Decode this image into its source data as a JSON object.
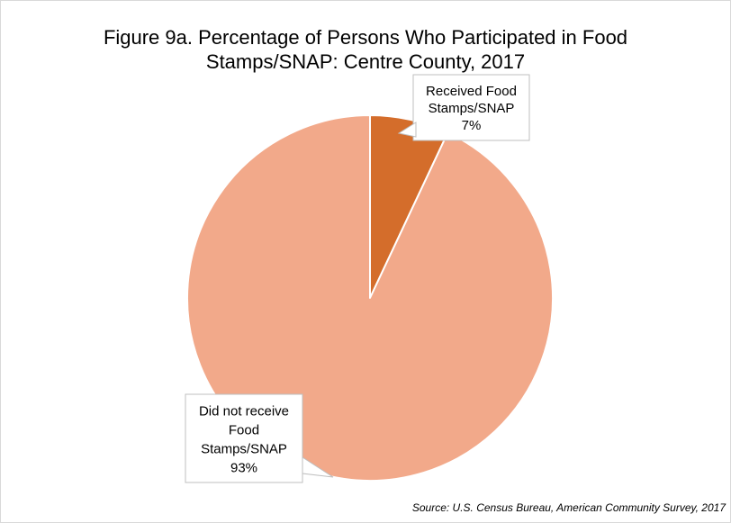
{
  "chart_data": {
    "type": "pie",
    "title": "Figure 9a. Percentage of Persons Who Participated in Food Stamps/SNAP: Centre County, 2017",
    "title_lines": [
      "Figure 9a. Percentage of Persons Who Participated in Food",
      "Stamps/SNAP: Centre County, 2017"
    ],
    "categories": [
      "Received Food Stamps/SNAP",
      "Did not receive Food Stamps/SNAP"
    ],
    "values": [
      7,
      93
    ],
    "colors": [
      "#d46d2b",
      "#f2a98a"
    ],
    "start_angle_deg": 0,
    "direction": "clockwise",
    "data_labels": [
      {
        "lines": [
          "Received Food",
          "Stamps/SNAP",
          "7%"
        ]
      },
      {
        "lines": [
          "Did not receive",
          "Food",
          "Stamps/SNAP",
          "93%"
        ]
      }
    ],
    "legend": "none",
    "source": "Source: U.S. Census Bureau, American Community Survey, 2017"
  }
}
